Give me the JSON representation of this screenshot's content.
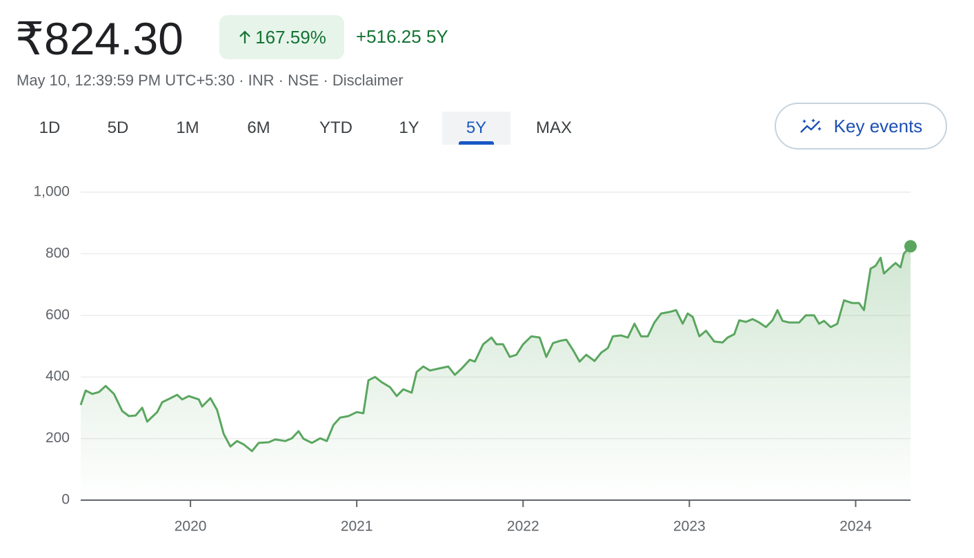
{
  "header": {
    "price": "₹824.30",
    "change_percent": "167.59%",
    "change": "+516.25",
    "period": "5Y",
    "subtitle": "May 10, 12:39:59 PM UTC+5:30 · INR · NSE · Disclaimer"
  },
  "ranges": [
    "1D",
    "5D",
    "1M",
    "6M",
    "YTD",
    "1Y",
    "5Y",
    "MAX"
  ],
  "selected_range": 6,
  "key_events": "Key events",
  "chart_data": {
    "type": "line",
    "x": [
      2019.34,
      2019.37,
      2019.41,
      2019.45,
      2019.49,
      2019.54,
      2019.59,
      2019.63,
      2019.67,
      2019.71,
      2019.74,
      2019.8,
      2019.83,
      2019.88,
      2019.92,
      2019.95,
      2019.99,
      2020.05,
      2020.07,
      2020.12,
      2020.16,
      2020.2,
      2020.24,
      2020.28,
      2020.32,
      2020.37,
      2020.41,
      2020.47,
      2020.51,
      2020.57,
      2020.61,
      2020.65,
      2020.68,
      2020.73,
      2020.78,
      2020.82,
      2020.86,
      2020.9,
      2020.95,
      2021.0,
      2021.04,
      2021.07,
      2021.11,
      2021.15,
      2021.2,
      2021.24,
      2021.28,
      2021.33,
      2021.36,
      2021.4,
      2021.44,
      2021.49,
      2021.55,
      2021.59,
      2021.63,
      2021.68,
      2021.71,
      2021.76,
      2021.81,
      2021.84,
      2021.88,
      2021.92,
      2021.96,
      2022.0,
      2022.05,
      2022.1,
      2022.14,
      2022.18,
      2022.22,
      2022.26,
      2022.3,
      2022.34,
      2022.38,
      2022.43,
      2022.47,
      2022.51,
      2022.54,
      2022.59,
      2022.63,
      2022.67,
      2022.71,
      2022.75,
      2022.79,
      2022.83,
      2022.88,
      2022.92,
      2022.96,
      2022.99,
      2023.02,
      2023.06,
      2023.1,
      2023.15,
      2023.2,
      2023.23,
      2023.27,
      2023.3,
      2023.34,
      2023.38,
      2023.42,
      2023.46,
      2023.5,
      2023.53,
      2023.56,
      2023.6,
      2023.66,
      2023.7,
      2023.75,
      2023.78,
      2023.81,
      2023.85,
      2023.89,
      2023.93,
      2023.98,
      2024.02,
      2024.05,
      2024.09,
      2024.12,
      2024.15,
      2024.17,
      2024.22,
      2024.24,
      2024.27,
      2024.29,
      2024.33
    ],
    "series": [
      {
        "color": "#5aa65f",
        "values": [
          309,
          356,
          345,
          351,
          371,
          345,
          289,
          273,
          275,
          300,
          255,
          286,
          318,
          331,
          342,
          327,
          338,
          327,
          304,
          331,
          293,
          215,
          174,
          192,
          181,
          159,
          186,
          188,
          197,
          192,
          201,
          224,
          199,
          186,
          201,
          192,
          244,
          268,
          273,
          286,
          282,
          389,
          400,
          383,
          367,
          338,
          360,
          349,
          416,
          434,
          421,
          427,
          434,
          407,
          427,
          456,
          450,
          506,
          528,
          506,
          506,
          465,
          472,
          506,
          532,
          528,
          465,
          510,
          517,
          521,
          488,
          450,
          472,
          452,
          479,
          494,
          532,
          535,
          528,
          573,
          532,
          532,
          577,
          606,
          611,
          617,
          573,
          606,
          595,
          532,
          550,
          515,
          512,
          528,
          539,
          584,
          579,
          588,
          577,
          562,
          584,
          617,
          582,
          577,
          577,
          600,
          600,
          573,
          582,
          562,
          573,
          649,
          640,
          640,
          617,
          752,
          761,
          787,
          736,
          761,
          770,
          756,
          801,
          824.3
        ]
      }
    ],
    "xlim": [
      2019.34,
      2024.33
    ],
    "xticks": [
      2020,
      2021,
      2022,
      2023,
      2024
    ],
    "ylim": [
      0,
      1000
    ],
    "yticks": [
      0,
      200,
      400,
      600,
      800,
      {
        "value": 1000,
        "label": "1,000"
      }
    ],
    "grid": true
  }
}
